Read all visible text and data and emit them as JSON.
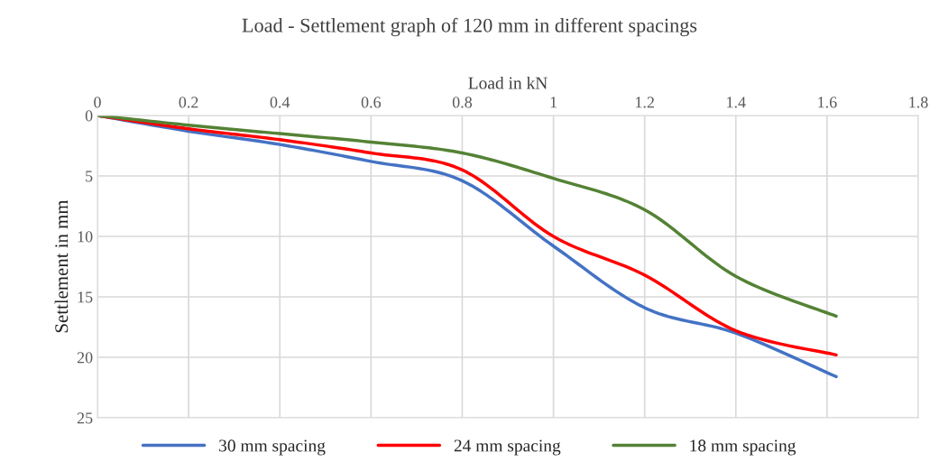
{
  "chart_data": {
    "type": "line",
    "title": "Load - Settlement graph of 120 mm in different spacings",
    "xlabel": "Load in kN",
    "ylabel": "Settlement in mm",
    "x": [
      0,
      0.2,
      0.4,
      0.6,
      0.8,
      1.0,
      1.2,
      1.4,
      1.62
    ],
    "series": [
      {
        "name": "30 mm spacing",
        "color": "#4472c4",
        "values": [
          0,
          1.3,
          2.4,
          3.8,
          5.4,
          10.8,
          15.9,
          18.0,
          21.6
        ]
      },
      {
        "name": "24 mm spacing",
        "color": "#ff0000",
        "values": [
          0,
          1.1,
          2.0,
          3.1,
          4.5,
          10.0,
          13.2,
          17.8,
          19.8
        ]
      },
      {
        "name": "18 mm spacing",
        "color": "#548235",
        "values": [
          0,
          0.8,
          1.5,
          2.2,
          3.1,
          5.2,
          7.8,
          13.3,
          16.6
        ]
      }
    ],
    "xlim": [
      0,
      1.8
    ],
    "xticks": [
      0,
      0.2,
      0.4,
      0.6,
      0.8,
      1,
      1.2,
      1.4,
      1.6,
      1.8
    ],
    "ylim": [
      25,
      0
    ],
    "yticks": [
      0,
      5,
      10,
      15,
      20,
      25
    ],
    "grid": true,
    "legend": "bottom",
    "marker": "none",
    "line_style": "solid"
  }
}
